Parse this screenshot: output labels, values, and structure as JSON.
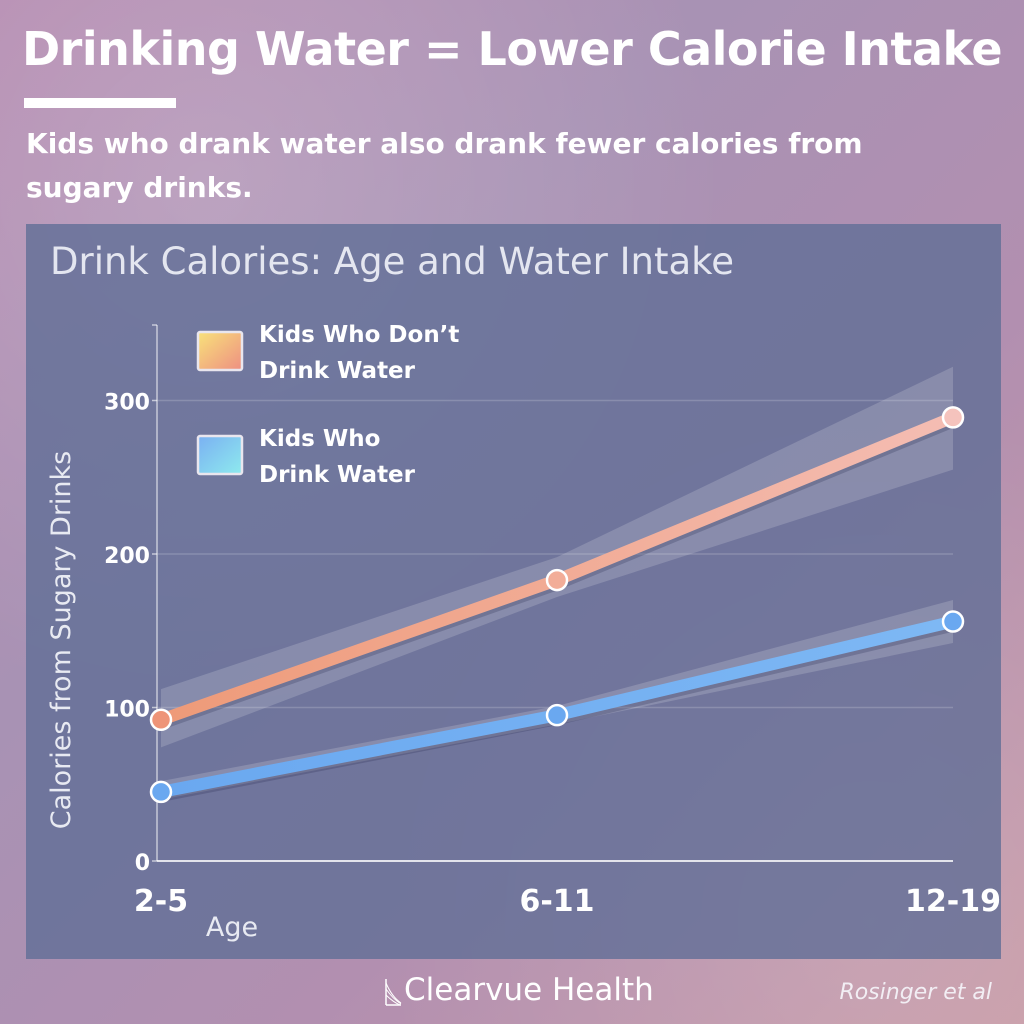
{
  "page": {
    "headline": "Drinking Water = Lower Calorie Intake",
    "subtitle": "Kids who drank water also drank fewer calories from sugary drinks.",
    "brand": "Clearvue Health",
    "source": "Rosinger et al"
  },
  "colors": {
    "no_water_series": "#ee9a78",
    "water_series": "#6fb0f0",
    "panel": "#606e96"
  },
  "chart_data": {
    "type": "line",
    "title": "Drink Calories: Age and Water Intake",
    "xlabel": "Age",
    "ylabel": "Calories from Sugary Drinks",
    "categories": [
      "2-5",
      "6-11",
      "12-19"
    ],
    "ylim": [
      0,
      350
    ],
    "yticks": [
      0,
      100,
      200,
      300
    ],
    "grid": true,
    "legend": "top-left",
    "series": [
      {
        "name": "Kids Who Don’t Drink Water",
        "values": [
          92,
          183,
          289
        ],
        "confidence_band": {
          "lower": [
            74,
            172,
            255
          ],
          "upper": [
            112,
            198,
            322
          ]
        }
      },
      {
        "name": "Kids Who Drink Water",
        "values": [
          45,
          95,
          156
        ],
        "confidence_band": {
          "lower": [
            40,
            89,
            142
          ],
          "upper": [
            52,
            101,
            170
          ]
        }
      }
    ]
  }
}
